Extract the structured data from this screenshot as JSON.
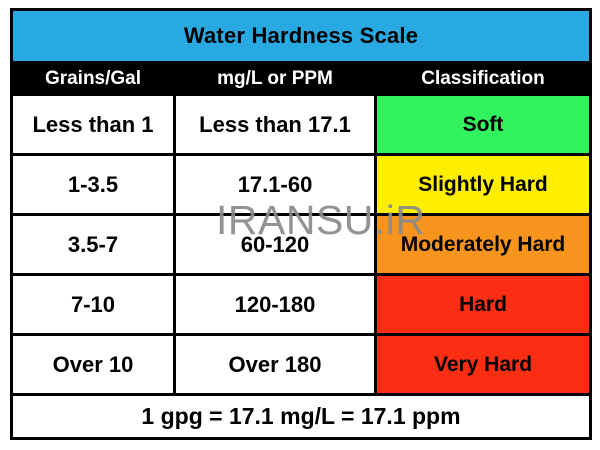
{
  "chart_data": {
    "type": "table",
    "title": "Water Hardness Scale",
    "columns": [
      "Grains/Gal",
      "mg/L or PPM",
      "Classification"
    ],
    "rows": [
      [
        "Less than 1",
        "Less than 17.1",
        "Soft"
      ],
      [
        "1-3.5",
        "17.1-60",
        "Slightly Hard"
      ],
      [
        "3.5-7",
        "60-120",
        "Moderately Hard"
      ],
      [
        "7-10",
        "120-180",
        "Hard"
      ],
      [
        "Over 10",
        "Over 180",
        "Very Hard"
      ]
    ],
    "row_classification_colors": [
      "#32F35E",
      "#FEEE00",
      "#F7941E",
      "#FB2E14",
      "#FB2E14"
    ],
    "footnote": "1 gpg = 17.1 mg/L = 17.1 ppm",
    "legend_position": "none",
    "grid": "on"
  },
  "colors": {
    "title_bg": "#29A9E1",
    "column_header_bg": "#000000",
    "column_header_text": "#FFFFFF",
    "cell_bg": "#FFFFFF",
    "border": "#000000",
    "watermark_text": "#8A8A8A"
  },
  "watermark": "IRANSU.iR"
}
